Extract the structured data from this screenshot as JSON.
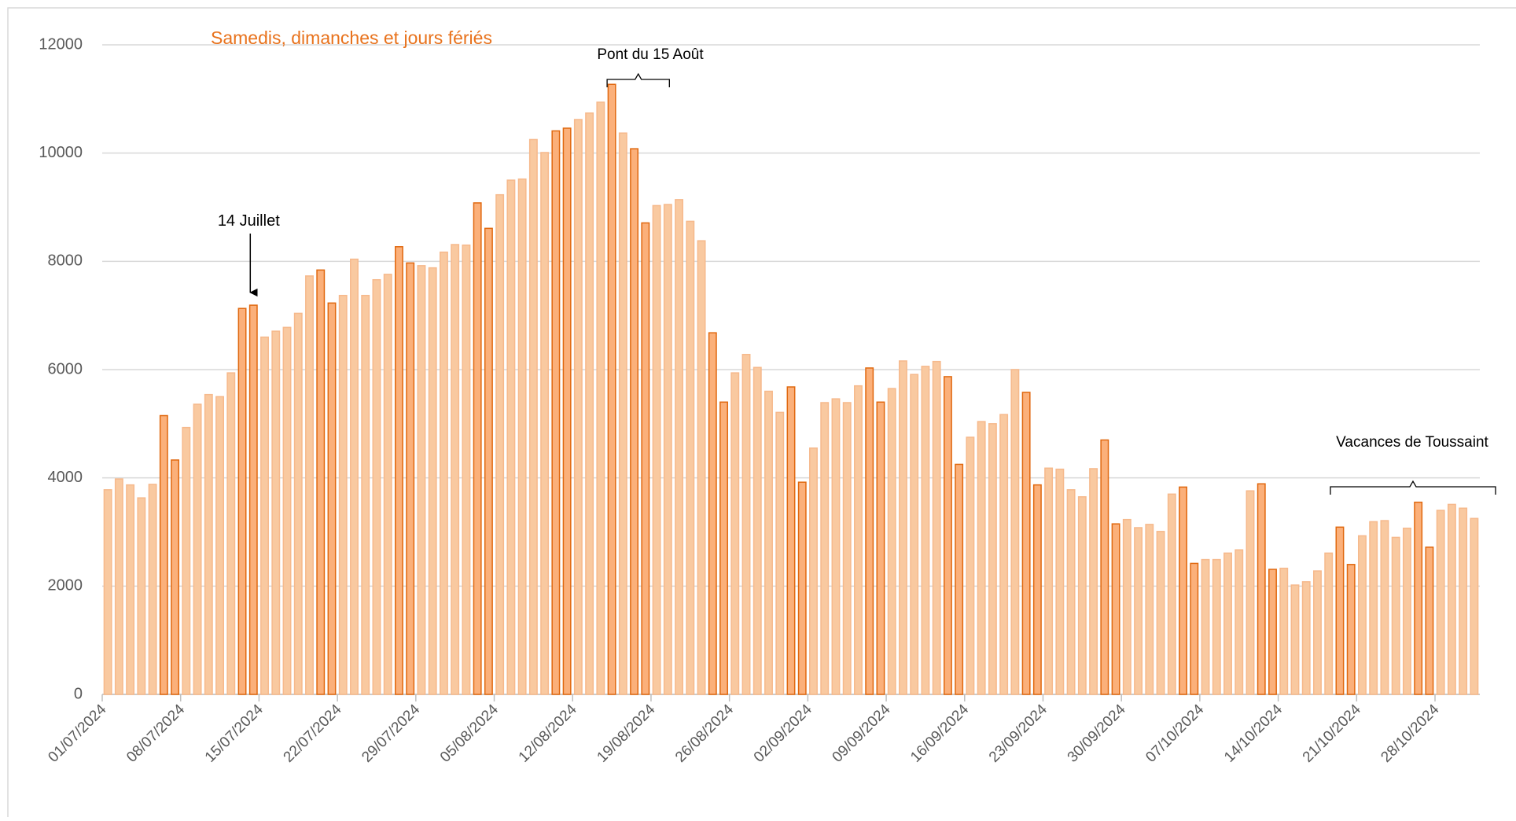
{
  "chart_data": {
    "type": "bar",
    "categories": [
      "01/07/2024",
      null,
      null,
      null,
      null,
      null,
      null,
      "08/07/2024",
      null,
      null,
      null,
      null,
      null,
      null,
      "15/07/2024",
      null,
      null,
      null,
      null,
      null,
      null,
      "22/07/2024",
      null,
      null,
      null,
      null,
      null,
      null,
      "29/07/2024",
      null,
      null,
      null,
      null,
      null,
      null,
      "05/08/2024",
      null,
      null,
      null,
      null,
      null,
      null,
      "12/08/2024",
      null,
      null,
      null,
      null,
      null,
      null,
      "19/08/2024",
      null,
      null,
      null,
      null,
      null,
      null,
      "26/08/2024",
      null,
      null,
      null,
      null,
      null,
      null,
      "02/09/2024",
      null,
      null,
      null,
      null,
      null,
      null,
      "09/09/2024",
      null,
      null,
      null,
      null,
      null,
      null,
      "16/09/2024",
      null,
      null,
      null,
      null,
      null,
      null,
      "23/09/2024",
      null,
      null,
      null,
      null,
      null,
      null,
      "30/09/2024",
      null,
      null,
      null,
      null,
      null,
      null,
      "07/10/2024",
      null,
      null,
      null,
      null,
      null,
      null,
      "14/10/2024",
      null,
      null,
      null,
      null,
      null,
      null,
      "21/10/2024",
      null,
      null,
      null,
      null,
      null,
      null,
      "28/10/2024",
      null,
      null,
      null
    ],
    "series": [
      {
        "color": "#f9c9a0",
        "stroke": "#f6b98c",
        "values": [
          3780,
          3980,
          3870,
          3630,
          3880,
          null,
          null,
          4930,
          5360,
          5540,
          5500,
          5940,
          null,
          null,
          6600,
          6710,
          6780,
          7040,
          7730,
          null,
          null,
          7370,
          8040,
          7370,
          7660,
          7760,
          null,
          null,
          7920,
          7880,
          8170,
          8310,
          8300,
          null,
          null,
          9230,
          9500,
          9520,
          10250,
          10010,
          null,
          null,
          10620,
          10740,
          10940,
          null,
          10370,
          null,
          null,
          9030,
          9050,
          9140,
          8740,
          8380,
          null,
          null,
          5940,
          6280,
          6040,
          5600,
          5210,
          null,
          null,
          4550,
          5390,
          5460,
          5390,
          5700,
          null,
          null,
          5650,
          6160,
          5910,
          6060,
          6150,
          null,
          null,
          4750,
          5040,
          5000,
          5170,
          6000,
          null,
          null,
          4180,
          4160,
          3780,
          3650,
          4170,
          null,
          null,
          3230,
          3080,
          3140,
          3010,
          3700,
          null,
          null,
          2490,
          2490,
          2610,
          2670,
          3760,
          null,
          null,
          2330,
          2020,
          2080,
          2280,
          2610,
          null,
          null,
          2930,
          3190,
          3210,
          2900,
          3070,
          null,
          null,
          3400,
          3510,
          3440,
          3250
        ]
      },
      {
        "name": "Samedis, dimanches et jours fériés",
        "color": "#fbb07a",
        "stroke": "#e0680f",
        "values": [
          null,
          null,
          null,
          null,
          null,
          5150,
          4330,
          null,
          null,
          null,
          null,
          null,
          7130,
          7190,
          null,
          null,
          null,
          null,
          null,
          7840,
          7230,
          null,
          null,
          null,
          null,
          null,
          8270,
          7970,
          null,
          null,
          null,
          null,
          null,
          9080,
          8610,
          null,
          null,
          null,
          null,
          null,
          10410,
          10460,
          null,
          null,
          null,
          11270,
          null,
          10080,
          8710,
          null,
          null,
          null,
          null,
          null,
          6680,
          5400,
          null,
          null,
          null,
          null,
          null,
          5680,
          3920,
          null,
          null,
          null,
          null,
          null,
          6030,
          5400,
          null,
          null,
          null,
          null,
          null,
          5870,
          4250,
          null,
          null,
          null,
          null,
          null,
          5580,
          3870,
          null,
          null,
          null,
          null,
          null,
          4700,
          3150,
          null,
          null,
          null,
          null,
          null,
          3830,
          2420,
          null,
          null,
          null,
          null,
          null,
          3890,
          2310,
          null,
          null,
          null,
          null,
          null,
          3090,
          2400,
          null,
          null,
          null,
          null,
          null,
          3550,
          2720,
          null,
          null,
          null,
          null
        ]
      }
    ],
    "legend_color": "#e8721c",
    "annotations": [
      "14 Juillet",
      "Pont du 15 Août",
      "Vacances de Toussaint"
    ],
    "ylim": [
      0,
      12000
    ],
    "yticks": [
      0,
      2000,
      4000,
      6000,
      8000,
      10000,
      12000
    ],
    "grid": true
  }
}
